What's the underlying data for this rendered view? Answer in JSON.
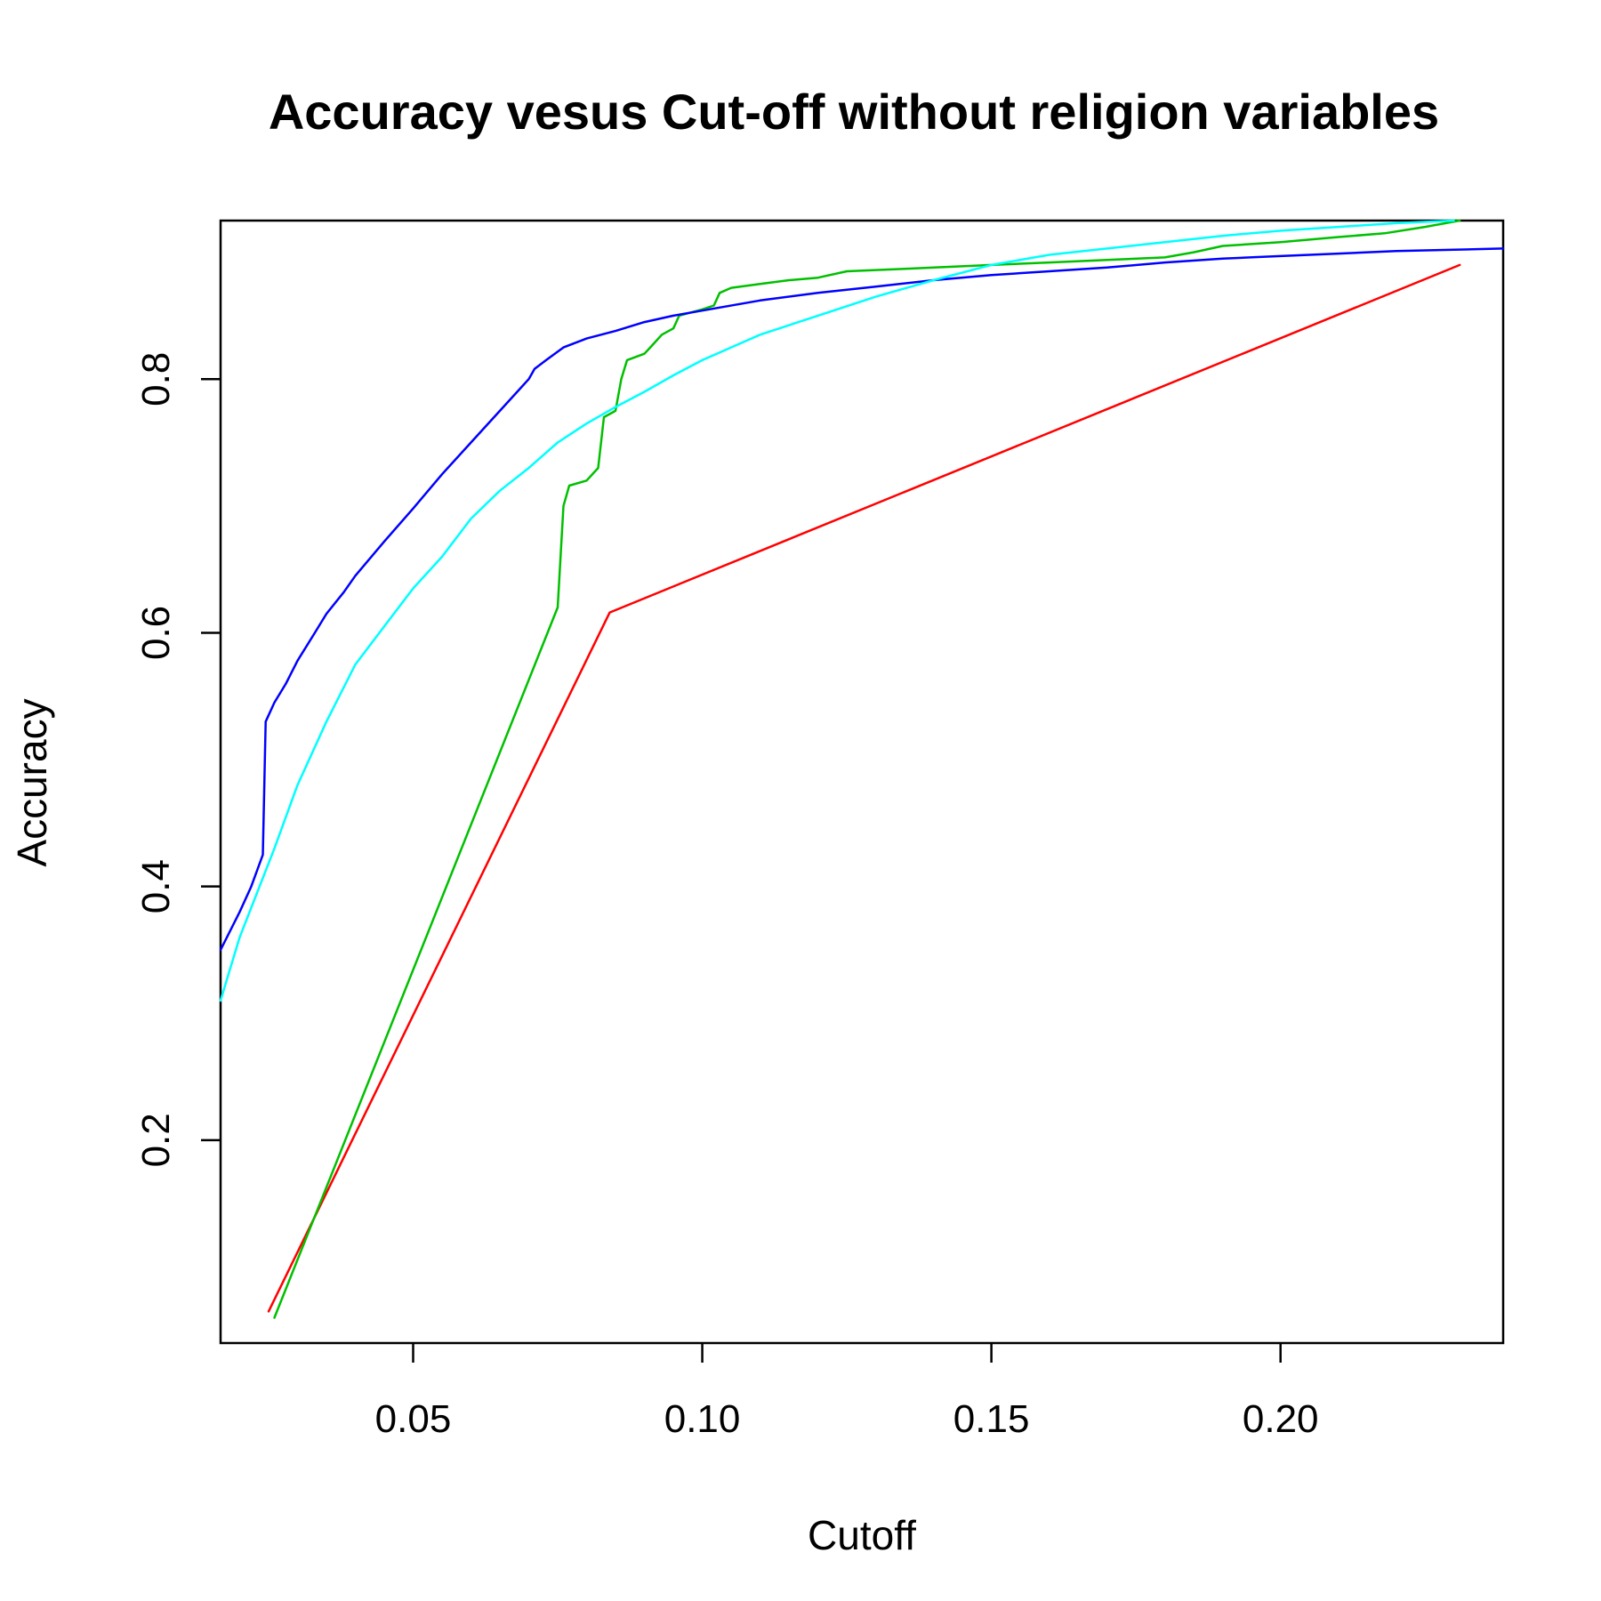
{
  "chart_data": {
    "type": "line",
    "title": "Accuracy vesus Cut-off without religion variables",
    "xlabel": "Cutoff",
    "ylabel": "Accuracy",
    "xlim": [
      0.0167,
      0.2385
    ],
    "ylim": [
      0.04,
      0.925
    ],
    "xticks": [
      0.05,
      0.1,
      0.15,
      0.2
    ],
    "xtick_labels": [
      "0.05",
      "0.10",
      "0.15",
      "0.20"
    ],
    "yticks": [
      0.2,
      0.4,
      0.6,
      0.8
    ],
    "ytick_labels": [
      "0.2",
      "0.4",
      "0.6",
      "0.8"
    ],
    "grid": false,
    "series": [
      {
        "color": "#ff0000",
        "points": [
          [
            0.025,
            0.065
          ],
          [
            0.084,
            0.616
          ],
          [
            0.231,
            0.89
          ]
        ]
      },
      {
        "color": "#00c000",
        "points": [
          [
            0.026,
            0.06
          ],
          [
            0.075,
            0.62
          ],
          [
            0.076,
            0.7
          ],
          [
            0.077,
            0.716
          ],
          [
            0.08,
            0.72
          ],
          [
            0.082,
            0.73
          ],
          [
            0.083,
            0.77
          ],
          [
            0.085,
            0.775
          ],
          [
            0.086,
            0.8
          ],
          [
            0.087,
            0.815
          ],
          [
            0.09,
            0.82
          ],
          [
            0.091,
            0.825
          ],
          [
            0.093,
            0.835
          ],
          [
            0.095,
            0.84
          ],
          [
            0.096,
            0.85
          ],
          [
            0.1,
            0.855
          ],
          [
            0.102,
            0.858
          ],
          [
            0.103,
            0.868
          ],
          [
            0.105,
            0.872
          ],
          [
            0.11,
            0.875
          ],
          [
            0.115,
            0.878
          ],
          [
            0.12,
            0.88
          ],
          [
            0.125,
            0.885
          ],
          [
            0.135,
            0.887
          ],
          [
            0.15,
            0.89
          ],
          [
            0.16,
            0.892
          ],
          [
            0.17,
            0.894
          ],
          [
            0.18,
            0.896
          ],
          [
            0.185,
            0.9
          ],
          [
            0.19,
            0.905
          ],
          [
            0.2,
            0.908
          ],
          [
            0.21,
            0.912
          ],
          [
            0.218,
            0.915
          ],
          [
            0.225,
            0.92
          ],
          [
            0.231,
            0.925
          ]
        ]
      },
      {
        "color": "#0000ff",
        "points": [
          [
            0.0167,
            0.35
          ],
          [
            0.02,
            0.38
          ],
          [
            0.022,
            0.4
          ],
          [
            0.024,
            0.425
          ],
          [
            0.0245,
            0.53
          ],
          [
            0.026,
            0.545
          ],
          [
            0.028,
            0.56
          ],
          [
            0.03,
            0.578
          ],
          [
            0.033,
            0.6
          ],
          [
            0.035,
            0.615
          ],
          [
            0.038,
            0.632
          ],
          [
            0.04,
            0.645
          ],
          [
            0.045,
            0.672
          ],
          [
            0.05,
            0.698
          ],
          [
            0.055,
            0.725
          ],
          [
            0.06,
            0.75
          ],
          [
            0.065,
            0.775
          ],
          [
            0.068,
            0.79
          ],
          [
            0.07,
            0.8
          ],
          [
            0.071,
            0.808
          ],
          [
            0.073,
            0.815
          ],
          [
            0.076,
            0.825
          ],
          [
            0.08,
            0.832
          ],
          [
            0.085,
            0.838
          ],
          [
            0.09,
            0.845
          ],
          [
            0.095,
            0.85
          ],
          [
            0.1,
            0.854
          ],
          [
            0.11,
            0.862
          ],
          [
            0.12,
            0.868
          ],
          [
            0.13,
            0.873
          ],
          [
            0.14,
            0.878
          ],
          [
            0.15,
            0.882
          ],
          [
            0.16,
            0.885
          ],
          [
            0.17,
            0.888
          ],
          [
            0.18,
            0.892
          ],
          [
            0.19,
            0.895
          ],
          [
            0.2,
            0.897
          ],
          [
            0.21,
            0.899
          ],
          [
            0.22,
            0.901
          ],
          [
            0.23,
            0.902
          ],
          [
            0.2385,
            0.903
          ]
        ]
      },
      {
        "color": "#00ffff",
        "points": [
          [
            0.0167,
            0.31
          ],
          [
            0.018,
            0.33
          ],
          [
            0.02,
            0.36
          ],
          [
            0.023,
            0.395
          ],
          [
            0.026,
            0.43
          ],
          [
            0.03,
            0.48
          ],
          [
            0.035,
            0.53
          ],
          [
            0.04,
            0.575
          ],
          [
            0.045,
            0.605
          ],
          [
            0.05,
            0.635
          ],
          [
            0.055,
            0.66
          ],
          [
            0.06,
            0.69
          ],
          [
            0.065,
            0.712
          ],
          [
            0.07,
            0.73
          ],
          [
            0.075,
            0.75
          ],
          [
            0.08,
            0.765
          ],
          [
            0.085,
            0.778
          ],
          [
            0.09,
            0.79
          ],
          [
            0.095,
            0.803
          ],
          [
            0.1,
            0.815
          ],
          [
            0.11,
            0.835
          ],
          [
            0.12,
            0.85
          ],
          [
            0.13,
            0.865
          ],
          [
            0.14,
            0.878
          ],
          [
            0.15,
            0.89
          ],
          [
            0.16,
            0.898
          ],
          [
            0.17,
            0.903
          ],
          [
            0.18,
            0.908
          ],
          [
            0.19,
            0.913
          ],
          [
            0.2,
            0.917
          ],
          [
            0.21,
            0.92
          ],
          [
            0.22,
            0.923
          ],
          [
            0.23,
            0.925
          ]
        ]
      }
    ]
  }
}
